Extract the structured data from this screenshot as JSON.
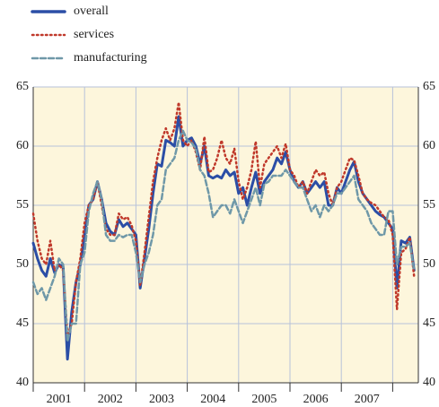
{
  "chart_data": {
    "type": "line",
    "x": [
      2001,
      2001.083,
      2001.167,
      2001.25,
      2001.333,
      2001.417,
      2001.5,
      2001.583,
      2001.667,
      2001.75,
      2001.833,
      2001.917,
      2002,
      2002.083,
      2002.167,
      2002.25,
      2002.333,
      2002.417,
      2002.5,
      2002.583,
      2002.667,
      2002.75,
      2002.833,
      2002.917,
      2003,
      2003.083,
      2003.167,
      2003.25,
      2003.333,
      2003.417,
      2003.5,
      2003.583,
      2003.667,
      2003.75,
      2003.833,
      2003.917,
      2004,
      2004.083,
      2004.167,
      2004.25,
      2004.333,
      2004.417,
      2004.5,
      2004.583,
      2004.667,
      2004.75,
      2004.833,
      2004.917,
      2005,
      2005.083,
      2005.167,
      2005.25,
      2005.333,
      2005.417,
      2005.5,
      2005.583,
      2005.667,
      2005.75,
      2005.833,
      2005.917,
      2006,
      2006.083,
      2006.167,
      2006.25,
      2006.333,
      2006.417,
      2006.5,
      2006.583,
      2006.667,
      2006.75,
      2006.833,
      2006.917,
      2007,
      2007.083,
      2007.167,
      2007.25,
      2007.333,
      2007.417,
      2007.5,
      2007.583,
      2007.667,
      2007.75,
      2007.833,
      2007.917,
      2008,
      2008.083,
      2008.167,
      2008.25,
      2008.333,
      2008.417
    ],
    "series": [
      {
        "name": "overall",
        "color": "#2b4ea6",
        "style": "solid",
        "values": [
          51.8,
          50.5,
          49.5,
          49.0,
          50.5,
          49.3,
          50.0,
          49.8,
          42.0,
          46.0,
          48.5,
          50.0,
          52.5,
          55.0,
          55.5,
          57.0,
          55.5,
          53.5,
          52.8,
          52.5,
          53.8,
          53.2,
          53.5,
          53.0,
          52.5,
          48.0,
          50.5,
          53.0,
          56.0,
          58.5,
          58.3,
          60.5,
          60.3,
          60.0,
          62.5,
          60.0,
          60.5,
          60.7,
          60.0,
          58.5,
          60.0,
          57.5,
          57.3,
          57.5,
          57.3,
          58.0,
          57.5,
          57.8,
          56.0,
          56.5,
          55.0,
          56.5,
          57.8,
          56.0,
          57.0,
          57.5,
          58.0,
          59.0,
          58.5,
          59.5,
          58.0,
          57.0,
          56.5,
          57.0,
          56.0,
          56.5,
          57.0,
          56.5,
          57.0,
          55.0,
          55.0,
          56.5,
          56.0,
          57.0,
          58.0,
          58.7,
          57.0,
          56.0,
          55.5,
          55.0,
          54.5,
          54.2,
          54.0,
          53.5,
          53.0,
          48.0,
          52.0,
          51.8,
          52.3,
          49.5
        ]
      },
      {
        "name": "services",
        "color": "#c0392b",
        "style": "dotted",
        "values": [
          54.3,
          52.0,
          50.5,
          50.0,
          52.0,
          49.5,
          50.0,
          49.5,
          44.0,
          45.0,
          48.5,
          50.5,
          53.5,
          55.0,
          55.5,
          57.0,
          55.0,
          53.0,
          52.5,
          52.5,
          54.3,
          53.8,
          54.0,
          53.3,
          52.0,
          48.2,
          51.0,
          54.0,
          57.0,
          59.0,
          60.5,
          61.5,
          60.5,
          61.5,
          63.7,
          60.5,
          60.0,
          60.5,
          59.5,
          58.0,
          60.8,
          57.8,
          58.0,
          59.0,
          60.5,
          59.0,
          58.5,
          59.8,
          57.0,
          55.5,
          56.5,
          58.0,
          60.4,
          56.5,
          58.5,
          59.0,
          59.5,
          60.0,
          59.0,
          60.2,
          58.0,
          57.5,
          56.5,
          57.0,
          56.0,
          57.0,
          58.0,
          57.5,
          57.8,
          56.0,
          55.0,
          56.5,
          57.0,
          58.0,
          59.0,
          58.8,
          57.5,
          56.0,
          55.5,
          55.2,
          55.0,
          54.5,
          54.0,
          53.8,
          52.5,
          46.2,
          51.0,
          51.3,
          52.3,
          49.0
        ]
      },
      {
        "name": "manufacturing",
        "color": "#6f98a8",
        "style": "dashed",
        "values": [
          48.5,
          47.5,
          48.0,
          47.0,
          48.0,
          49.0,
          50.5,
          50.0,
          43.5,
          45.0,
          45.0,
          50.0,
          51.0,
          54.5,
          56.0,
          57.0,
          55.5,
          52.5,
          52.0,
          52.0,
          52.5,
          52.3,
          52.5,
          52.5,
          51.0,
          48.5,
          50.0,
          51.0,
          52.5,
          55.0,
          55.5,
          58.0,
          58.5,
          59.0,
          60.5,
          61.3,
          60.5,
          60.3,
          59.8,
          58.0,
          57.5,
          56.0,
          54.0,
          54.5,
          55.0,
          55.0,
          54.3,
          55.5,
          54.5,
          53.5,
          54.5,
          55.5,
          56.5,
          55.0,
          56.8,
          57.0,
          57.5,
          57.5,
          57.5,
          58.0,
          57.5,
          57.0,
          56.5,
          56.5,
          55.5,
          54.5,
          55.0,
          54.0,
          55.0,
          54.5,
          55.0,
          56.0,
          56.0,
          56.5,
          57.0,
          57.5,
          55.5,
          55.0,
          54.5,
          53.5,
          53.0,
          52.5,
          52.5,
          54.5,
          54.5,
          50.0,
          51.5,
          51.5,
          51.8,
          49.5
        ]
      }
    ],
    "xlim": [
      2001,
      2008.5
    ],
    "xticks": [
      {
        "value": 2001,
        "label": "2001"
      },
      {
        "value": 2002,
        "label": "2002"
      },
      {
        "value": 2003,
        "label": "2003"
      },
      {
        "value": 2004,
        "label": "2004"
      },
      {
        "value": 2005,
        "label": "2005"
      },
      {
        "value": 2006,
        "label": "2006"
      },
      {
        "value": 2007,
        "label": "2007"
      }
    ],
    "ylim": [
      40,
      65
    ],
    "yticks": [
      40,
      45,
      50,
      55,
      60,
      65
    ],
    "grid": true
  }
}
